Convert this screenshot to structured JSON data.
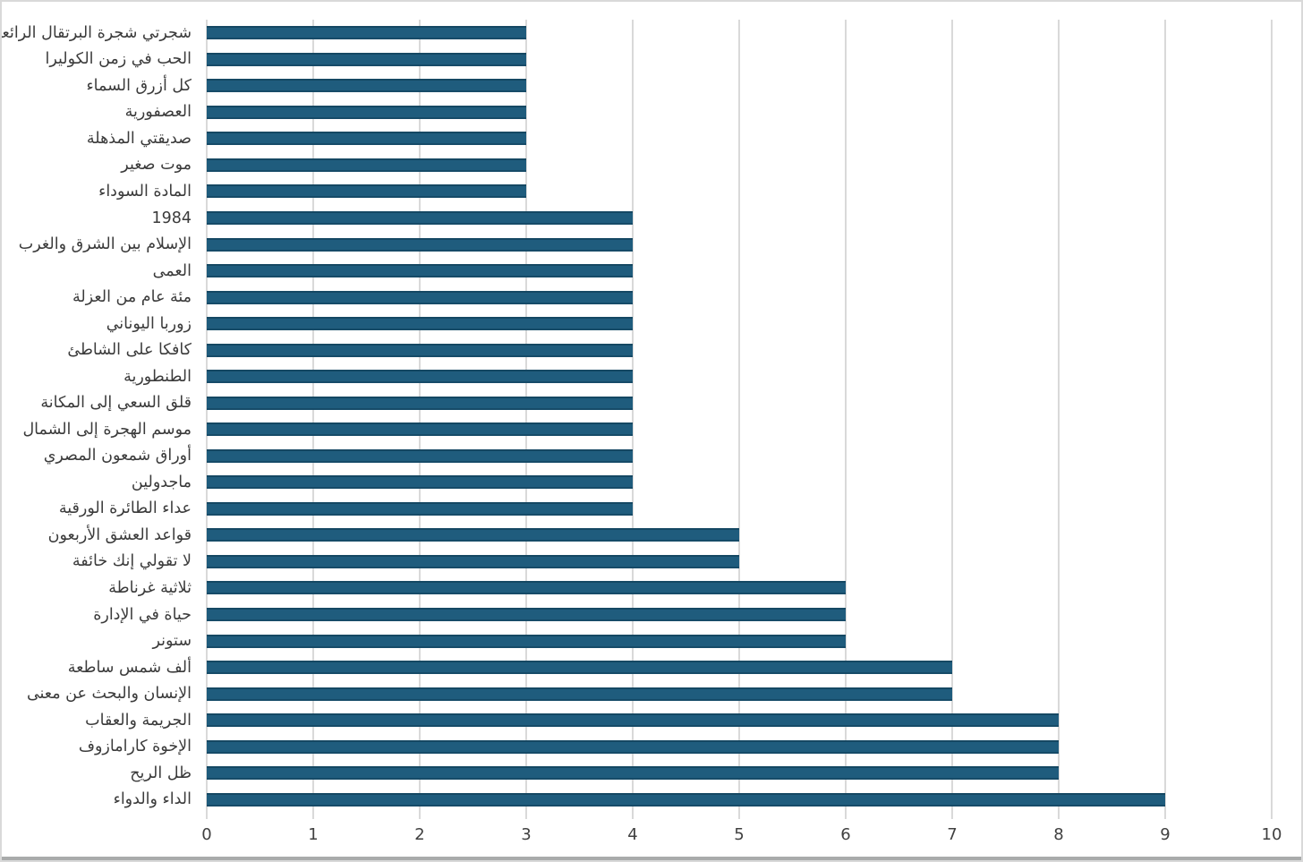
{
  "chart_data": {
    "type": "bar",
    "orientation": "horizontal",
    "title": "",
    "xlabel": "",
    "ylabel": "",
    "grid": true,
    "legend": "none",
    "xlim": [
      0,
      10
    ],
    "x_ticks": [
      0,
      1,
      2,
      3,
      4,
      5,
      6,
      7,
      8,
      9,
      10
    ],
    "categories": [
      "شجرتي شجرة البرتقال الرائعة",
      "الحب في زمن الكوليرا",
      "كل أزرق السماء",
      "العصفورية",
      "صديقتي المذهلة",
      "موت صغير",
      "المادة السوداء",
      "1984",
      "الإسلام بين الشرق والغرب",
      "العمى",
      "مئة عام من العزلة",
      "زوربا اليوناني",
      "كافكا على الشاطئ",
      "الطنطورية",
      "قلق السعي إلى المكانة",
      "موسم الهجرة إلى الشمال",
      "أوراق شمعون المصري",
      "ماجدولين",
      "عداء الطائرة الورقية",
      "قواعد العشق الأربعون",
      "لا تقولي إنك خائفة",
      "ثلاثية غرناطة",
      "حياة في الإدارة",
      "ستونر",
      "ألف شمس ساطعة",
      "الإنسان والبحث عن معنى",
      "الجريمة والعقاب",
      "الإخوة كارامازوف",
      "ظل الريح",
      "الداء والدواء"
    ],
    "values": [
      3,
      3,
      3,
      3,
      3,
      3,
      3,
      4,
      4,
      4,
      4,
      4,
      4,
      4,
      4,
      4,
      4,
      4,
      4,
      5,
      5,
      6,
      6,
      6,
      7,
      7,
      8,
      8,
      8,
      9
    ],
    "colors": {
      "bar_fill": "#1f5c7d",
      "gridline": "#d9d9d9",
      "category_label_text": "#3b3b3b",
      "axis_tick_text": "#404040",
      "frame_border": "#d9d9d9",
      "bottom_strip": "#a9abab",
      "background": "#ffffff"
    }
  }
}
